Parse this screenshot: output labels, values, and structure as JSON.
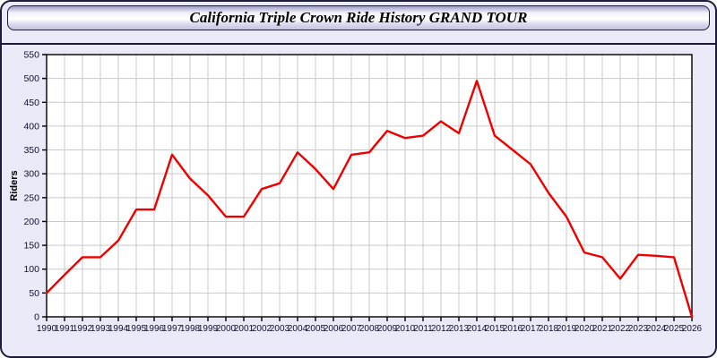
{
  "page": {
    "title": "California Triple Crown Ride History GRAND TOUR"
  },
  "colors": {
    "page_background": "#e9e9f7",
    "page_border": "#1b1b3a",
    "plot_background": "#ffffff",
    "gridline": "#c9c9c9",
    "axis_frame": "#000000",
    "series_line": "#ee0000",
    "tick_label": "#10102e",
    "axis_label": "#000000"
  },
  "chart_data": {
    "type": "line",
    "title": "California Triple Crown Ride History GRAND TOUR",
    "xlabel": "",
    "ylabel": "Riders",
    "grid": true,
    "legend": "none",
    "ylim": [
      0,
      550
    ],
    "ytick_step": 50,
    "x": [
      1990,
      1991,
      1992,
      1993,
      1994,
      1995,
      1996,
      1997,
      1998,
      1999,
      2000,
      2001,
      2002,
      2003,
      2004,
      2005,
      2006,
      2007,
      2008,
      2009,
      2010,
      2011,
      2012,
      2013,
      2014,
      2015,
      2016,
      2017,
      2018,
      2019,
      2020,
      2021,
      2022,
      2023,
      2024,
      2025,
      2026
    ],
    "series": [
      {
        "name": "Riders",
        "color": "#ee0000",
        "values": [
          50,
          88,
          125,
          125,
          160,
          225,
          225,
          340,
          290,
          255,
          210,
          210,
          268,
          280,
          345,
          310,
          268,
          340,
          345,
          390,
          375,
          380,
          410,
          385,
          495,
          380,
          350,
          320,
          260,
          210,
          135,
          125,
          80,
          130,
          128,
          125,
          0
        ]
      }
    ]
  }
}
